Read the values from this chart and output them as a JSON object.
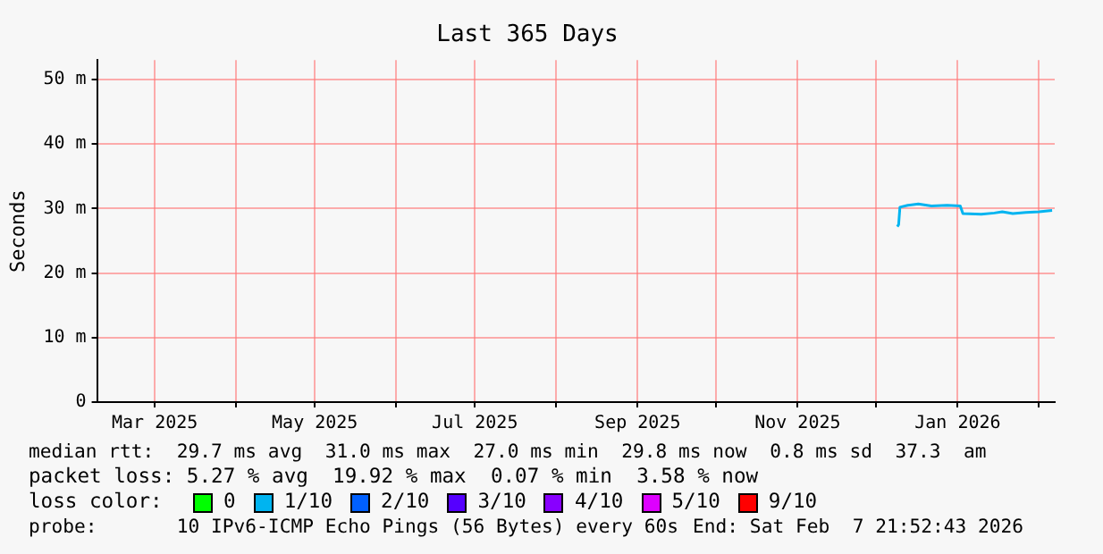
{
  "chart_data": {
    "type": "line",
    "title": "Last 365 Days",
    "ylabel": "Seconds",
    "x": [
      "2025-12-09",
      "2025-12-09T12:00",
      "2025-12-10",
      "2025-12-13",
      "2025-12-17",
      "2025-12-22",
      "2025-12-28",
      "2026-01-02",
      "2026-01-03",
      "2026-01-10",
      "2026-01-15",
      "2026-01-18",
      "2026-01-22",
      "2026-01-27",
      "2026-02-01",
      "2026-02-06"
    ],
    "series": [
      {
        "color": "#00b4f0",
        "values": [
          27.2,
          27.5,
          30.2,
          30.5,
          30.7,
          30.4,
          30.5,
          30.4,
          29.2,
          29.1,
          29.3,
          29.5,
          29.2,
          29.4,
          29.5,
          29.7
        ]
      }
    ],
    "xlim": [
      "2025-02-07",
      "2026-02-07"
    ],
    "xticks": [
      {
        "value": "2025-03-01",
        "label": "Mar 2025"
      },
      {
        "value": "2025-04-01",
        "label": null
      },
      {
        "value": "2025-05-01",
        "label": "May 2025"
      },
      {
        "value": "2025-06-01",
        "label": null
      },
      {
        "value": "2025-07-01",
        "label": "Jul 2025"
      },
      {
        "value": "2025-08-01",
        "label": null
      },
      {
        "value": "2025-09-01",
        "label": "Sep 2025"
      },
      {
        "value": "2025-10-01",
        "label": null
      },
      {
        "value": "2025-11-01",
        "label": "Nov 2025"
      },
      {
        "value": "2025-12-01",
        "label": null
      },
      {
        "value": "2026-01-01",
        "label": "Jan 2026"
      },
      {
        "value": "2026-02-01",
        "label": null
      }
    ],
    "ylim": [
      0,
      53
    ],
    "yticks": [
      0,
      {
        "value": 10,
        "label": "10 m"
      },
      {
        "value": 20,
        "label": "20 m"
      },
      {
        "value": 30,
        "label": "30 m"
      },
      {
        "value": 40,
        "label": "40 m"
      },
      {
        "value": 50,
        "label": "50 m"
      }
    ],
    "grid": true,
    "legend": false,
    "marker": "none",
    "line_style": "solid",
    "annotations": [
      "median rtt:  29.7 ms avg  31.0 ms max  27.0 ms min  29.8 ms now  0.8 ms sd  37.3  am",
      "packet loss: 5.27 % avg  19.92 % max  0.07 % min  3.58 % now",
      "loss color:",
      "0",
      "1/10",
      "2/10",
      "3/10",
      "4/10",
      "5/10",
      "9/10",
      "probe:       10 IPv6-ICMP Echo Pings (56 Bytes) every 60s",
      "End: Sat Feb  7 21:52:43 2026"
    ]
  }
}
